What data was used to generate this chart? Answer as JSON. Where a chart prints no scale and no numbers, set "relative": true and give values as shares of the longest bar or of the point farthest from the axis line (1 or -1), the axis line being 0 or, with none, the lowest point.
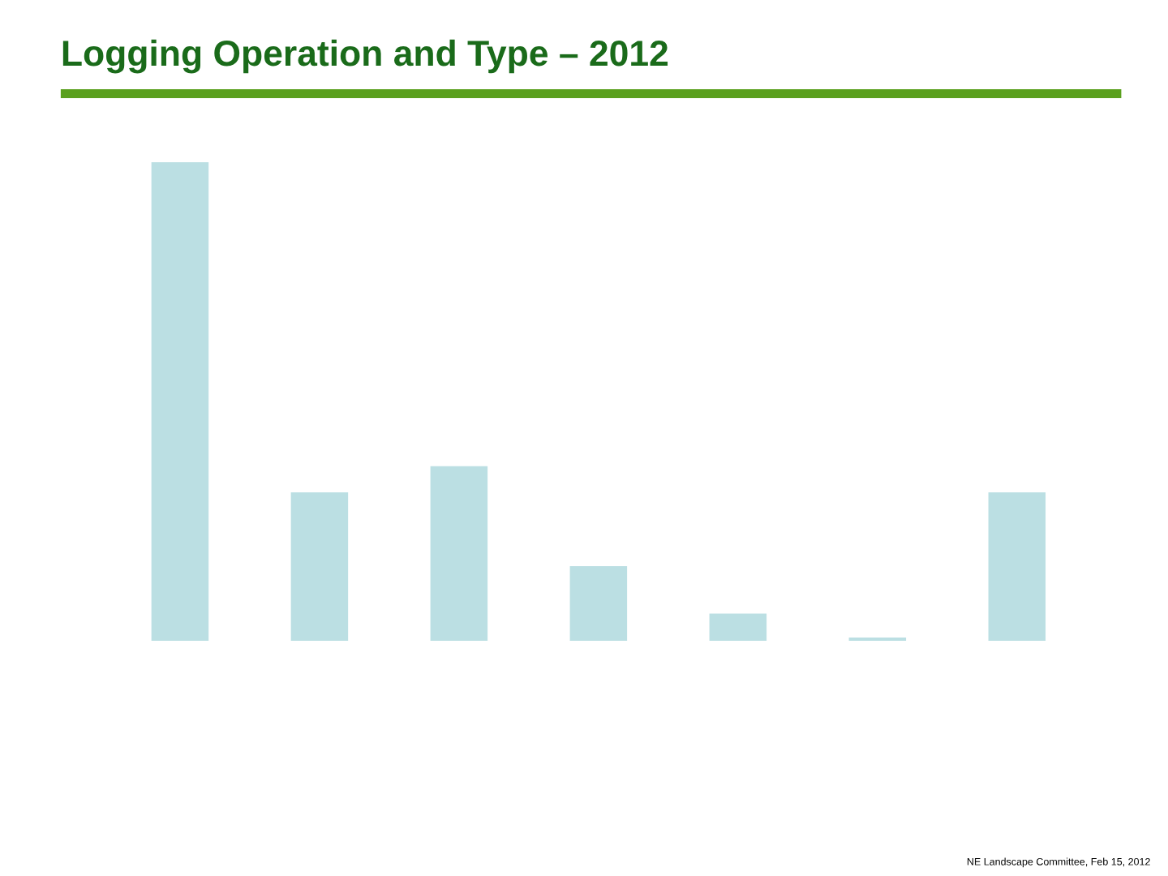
{
  "chart_data": {
    "type": "bar",
    "title": "Logging Operation and Type – 2012",
    "relative": true,
    "categories": [
      null,
      null,
      null,
      null,
      null,
      null,
      null
    ],
    "values": [
      1,
      0.31,
      0.365,
      0.156,
      0.057,
      0.007,
      0.31
    ],
    "color": "#bbdfe3",
    "annotations": [
      "NE Landscape Committee, Feb 15, 2012"
    ]
  }
}
